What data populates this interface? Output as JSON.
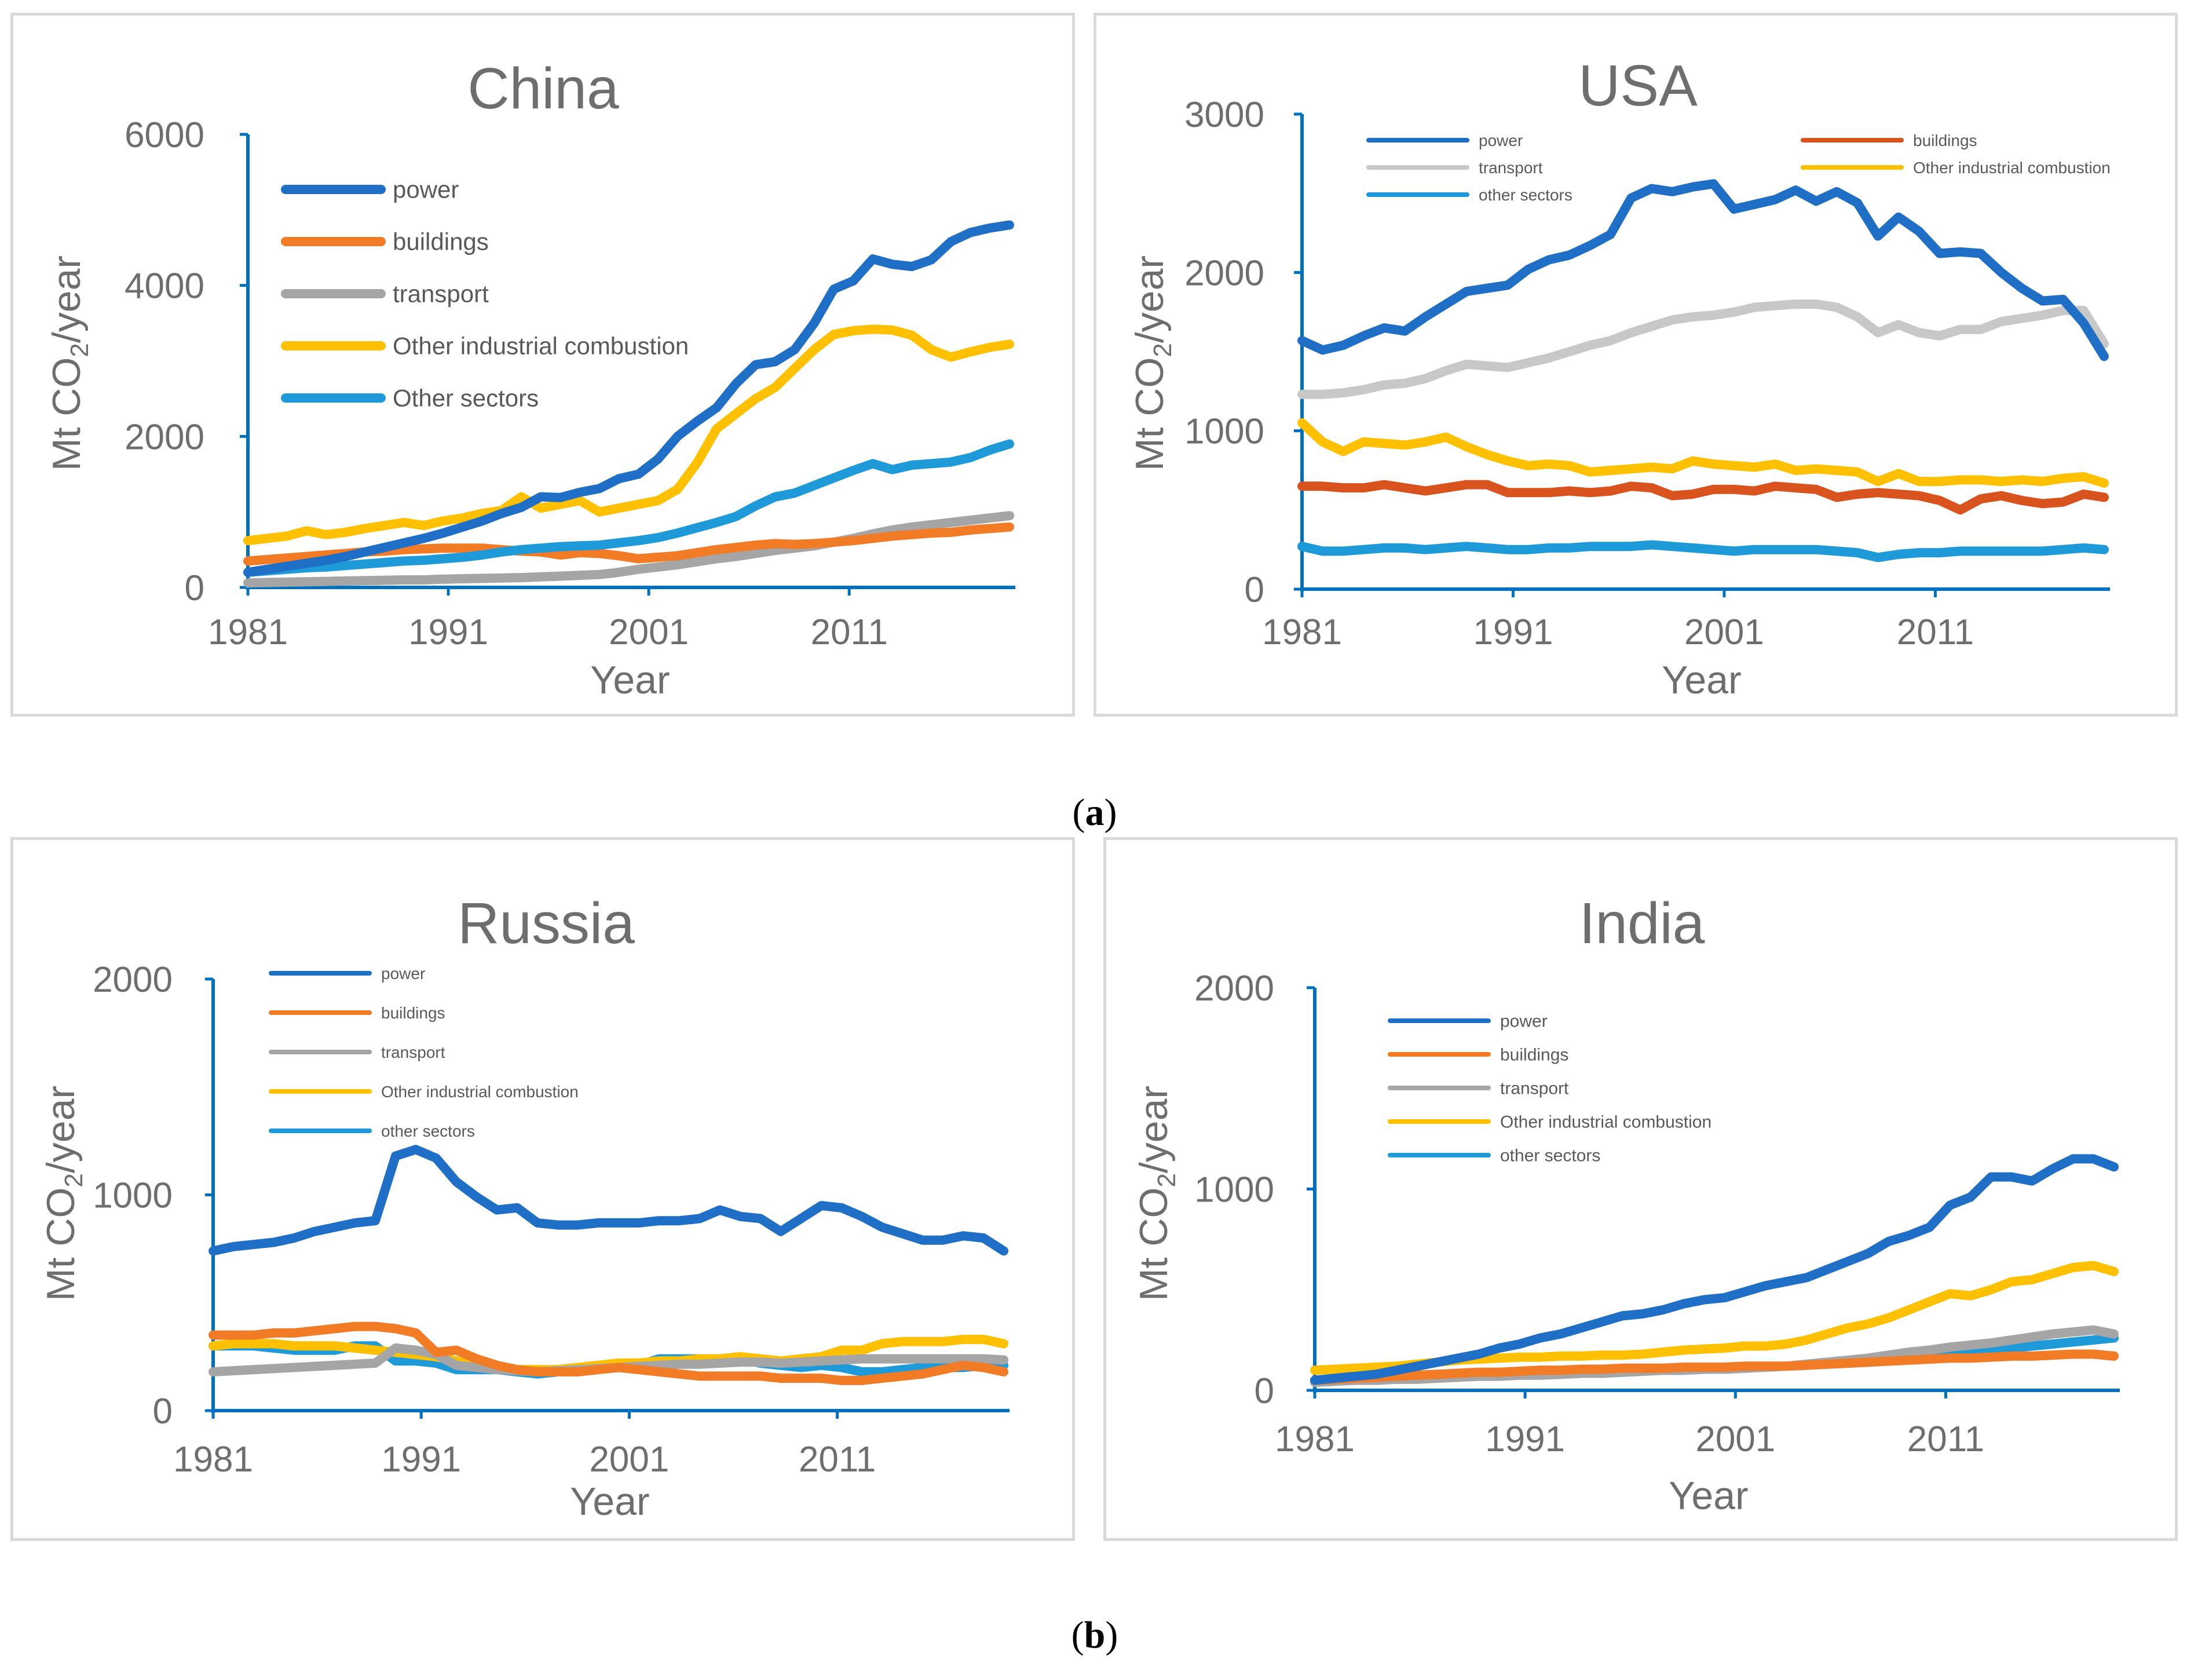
{
  "captions": {
    "a": "a",
    "b": "b"
  },
  "colors": {
    "power": "#1f6fc6",
    "buildings": "#f27b26",
    "transport": "#a5a5a5",
    "other_industrial": "#ffc000",
    "other_sectors": "#1f9ad9",
    "axis": "#0070c0",
    "tick_text": "#6e6e6e",
    "us_buildings": "#d9531e",
    "us_transport": "#c8c8c8"
  },
  "chart_data": [
    {
      "id": "china",
      "type": "line",
      "title": "China",
      "xlabel": "Year",
      "ylabel_main": "Mt CO",
      "ylabel_sub": "2",
      "ylabel_tail": "/year",
      "ylim": [
        0,
        6000
      ],
      "yticks": [
        "0",
        "2000",
        "4000",
        "6000"
      ],
      "xlim": [
        1981,
        2019
      ],
      "xticks": [
        "1981",
        "1991",
        "2001",
        "2011"
      ],
      "legend_style": "big",
      "series": [
        {
          "name": "power",
          "color": "#1f6fc6",
          "values": [
            200,
            240,
            280,
            320,
            360,
            410,
            470,
            530,
            590,
            650,
            720,
            800,
            880,
            980,
            1060,
            1200,
            1190,
            1260,
            1310,
            1440,
            1500,
            1700,
            2000,
            2200,
            2380,
            2700,
            2950,
            2990,
            3150,
            3500,
            3950,
            4060,
            4350,
            4280,
            4250,
            4340,
            4580,
            4700,
            4760,
            4800
          ]
        },
        {
          "name": "buildings",
          "color": "#f27b26",
          "values": [
            350,
            370,
            390,
            410,
            430,
            450,
            470,
            480,
            500,
            510,
            520,
            520,
            520,
            500,
            480,
            470,
            430,
            460,
            450,
            420,
            380,
            400,
            420,
            460,
            500,
            530,
            560,
            580,
            570,
            580,
            600,
            620,
            650,
            680,
            700,
            720,
            730,
            760,
            780,
            800
          ]
        },
        {
          "name": "transport",
          "color": "#a5a5a5",
          "values": [
            60,
            65,
            70,
            75,
            80,
            85,
            90,
            95,
            100,
            100,
            110,
            115,
            120,
            125,
            130,
            140,
            150,
            160,
            170,
            200,
            240,
            270,
            300,
            340,
            380,
            410,
            450,
            490,
            520,
            550,
            600,
            650,
            710,
            760,
            800,
            830,
            860,
            890,
            920,
            950
          ]
        },
        {
          "name": "Other industrial combustion",
          "color": "#ffc000",
          "values": [
            620,
            650,
            680,
            750,
            700,
            730,
            780,
            820,
            860,
            820,
            880,
            920,
            980,
            1020,
            1200,
            1050,
            1100,
            1150,
            1000,
            1050,
            1100,
            1150,
            1300,
            1650,
            2100,
            2300,
            2500,
            2650,
            2900,
            3150,
            3350,
            3400,
            3420,
            3410,
            3340,
            3150,
            3050,
            3120,
            3180,
            3220
          ]
        },
        {
          "name": "Other sectors",
          "color": "#1f9ad9",
          "values": [
            200,
            220,
            240,
            260,
            270,
            290,
            310,
            330,
            350,
            360,
            380,
            400,
            430,
            470,
            500,
            520,
            540,
            550,
            560,
            590,
            620,
            660,
            720,
            790,
            860,
            940,
            1080,
            1200,
            1250,
            1350,
            1450,
            1550,
            1640,
            1560,
            1620,
            1640,
            1660,
            1720,
            1820,
            1900
          ]
        }
      ]
    },
    {
      "id": "usa",
      "type": "line",
      "title": "USA",
      "xlabel": "Year",
      "ylabel_main": "Mt CO",
      "ylabel_sub": "2",
      "ylabel_tail": "/year",
      "ylim": [
        0,
        3000
      ],
      "yticks": [
        "0",
        "1000",
        "2000",
        "3000"
      ],
      "xlim": [
        1981,
        2019
      ],
      "xticks": [
        "1981",
        "1991",
        "2001",
        "2011"
      ],
      "legend_style": "two-col",
      "series": [
        {
          "name": "power",
          "color": "#1f6fc6",
          "values": [
            1570,
            1510,
            1540,
            1600,
            1650,
            1630,
            1720,
            1800,
            1880,
            1900,
            1920,
            2020,
            2080,
            2110,
            2170,
            2240,
            2470,
            2530,
            2510,
            2540,
            2560,
            2400,
            2430,
            2460,
            2520,
            2450,
            2510,
            2440,
            2230,
            2350,
            2260,
            2120,
            2130,
            2120,
            2000,
            1900,
            1820,
            1830,
            1680,
            1470
          ]
        },
        {
          "name": "buildings",
          "color": "#d9531e",
          "values": [
            650,
            650,
            640,
            640,
            660,
            640,
            620,
            640,
            660,
            660,
            610,
            610,
            610,
            620,
            610,
            620,
            650,
            640,
            590,
            600,
            630,
            630,
            620,
            650,
            640,
            630,
            580,
            600,
            610,
            600,
            590,
            560,
            500,
            570,
            590,
            560,
            540,
            550,
            600,
            580
          ]
        },
        {
          "name": "transport",
          "color": "#c8c8c8",
          "values": [
            1230,
            1230,
            1240,
            1260,
            1290,
            1300,
            1330,
            1380,
            1420,
            1410,
            1400,
            1430,
            1460,
            1500,
            1540,
            1570,
            1620,
            1660,
            1700,
            1720,
            1730,
            1750,
            1780,
            1790,
            1800,
            1800,
            1780,
            1720,
            1620,
            1670,
            1620,
            1600,
            1640,
            1640,
            1690,
            1710,
            1730,
            1760,
            1760,
            1550
          ]
        },
        {
          "name": "Other industrial combustion",
          "color": "#ffc000",
          "values": [
            1050,
            930,
            870,
            930,
            920,
            910,
            930,
            960,
            900,
            850,
            810,
            780,
            790,
            780,
            740,
            750,
            760,
            770,
            760,
            810,
            790,
            780,
            770,
            790,
            750,
            760,
            750,
            740,
            680,
            730,
            680,
            680,
            690,
            690,
            680,
            690,
            680,
            700,
            710,
            670
          ]
        },
        {
          "name": "other sectors",
          "color": "#1f9ad9",
          "values": [
            270,
            240,
            240,
            250,
            260,
            260,
            250,
            260,
            270,
            260,
            250,
            250,
            260,
            260,
            270,
            270,
            270,
            280,
            270,
            260,
            250,
            240,
            250,
            250,
            250,
            250,
            240,
            230,
            200,
            220,
            230,
            230,
            240,
            240,
            240,
            240,
            240,
            250,
            260,
            250
          ]
        }
      ]
    },
    {
      "id": "russia",
      "type": "line",
      "title": "Russia",
      "xlabel": "Year",
      "ylabel_main": "Mt CO",
      "ylabel_sub": "2",
      "ylabel_tail": "/year",
      "ylim": [
        0,
        2000
      ],
      "yticks": [
        "0",
        "1000",
        "2000"
      ],
      "xlim": [
        1981,
        2019
      ],
      "xticks": [
        "1981",
        "1991",
        "2001",
        "2011"
      ],
      "legend_style": "small",
      "series": [
        {
          "name": "power",
          "color": "#1f6fc6",
          "values": [
            740,
            760,
            770,
            780,
            800,
            830,
            850,
            870,
            880,
            1180,
            1210,
            1170,
            1060,
            990,
            930,
            940,
            870,
            860,
            860,
            870,
            870,
            870,
            880,
            880,
            890,
            930,
            900,
            890,
            830,
            890,
            950,
            940,
            900,
            850,
            820,
            790,
            790,
            810,
            800,
            740
          ]
        },
        {
          "name": "buildings",
          "color": "#f27b26",
          "values": [
            350,
            350,
            350,
            360,
            360,
            370,
            380,
            390,
            390,
            380,
            360,
            270,
            280,
            240,
            210,
            190,
            180,
            180,
            180,
            190,
            200,
            190,
            180,
            170,
            160,
            160,
            160,
            160,
            150,
            150,
            150,
            140,
            140,
            150,
            160,
            170,
            190,
            210,
            200,
            180
          ]
        },
        {
          "name": "transport",
          "color": "#a5a5a5",
          "values": [
            180,
            185,
            190,
            195,
            200,
            205,
            210,
            215,
            220,
            290,
            280,
            260,
            210,
            200,
            190,
            185,
            180,
            185,
            190,
            195,
            200,
            205,
            210,
            215,
            215,
            220,
            225,
            225,
            220,
            225,
            230,
            235,
            240,
            240,
            240,
            240,
            240,
            240,
            240,
            235
          ]
        },
        {
          "name": "Other industrial combustion",
          "color": "#ffc000",
          "values": [
            300,
            310,
            310,
            310,
            300,
            300,
            300,
            290,
            280,
            270,
            260,
            250,
            230,
            210,
            200,
            190,
            190,
            190,
            200,
            210,
            220,
            220,
            230,
            230,
            240,
            240,
            250,
            240,
            230,
            240,
            250,
            280,
            280,
            310,
            320,
            320,
            320,
            330,
            330,
            310
          ]
        },
        {
          "name": "other sectors",
          "color": "#1f9ad9",
          "values": [
            300,
            300,
            300,
            290,
            280,
            280,
            280,
            300,
            300,
            230,
            230,
            220,
            190,
            190,
            190,
            180,
            170,
            180,
            190,
            200,
            200,
            210,
            240,
            240,
            240,
            240,
            240,
            220,
            210,
            200,
            210,
            200,
            180,
            180,
            190,
            200,
            200,
            200,
            210,
            210
          ]
        }
      ]
    },
    {
      "id": "india",
      "type": "line",
      "title": "India",
      "xlabel": "Year",
      "ylabel_main": "Mt CO",
      "ylabel_sub": "2",
      "ylabel_tail": "/year",
      "ylim": [
        0,
        2000
      ],
      "yticks": [
        "0",
        "1000",
        "2000"
      ],
      "xlim": [
        1981,
        2019
      ],
      "xticks": [
        "1981",
        "1991",
        "2001",
        "2011"
      ],
      "legend_style": "medium",
      "series": [
        {
          "name": "power",
          "color": "#1f6fc6",
          "values": [
            50,
            60,
            70,
            80,
            100,
            120,
            140,
            160,
            180,
            210,
            230,
            260,
            280,
            310,
            340,
            370,
            380,
            400,
            430,
            450,
            460,
            490,
            520,
            540,
            560,
            600,
            640,
            680,
            740,
            770,
            810,
            920,
            960,
            1060,
            1060,
            1040,
            1100,
            1150,
            1150,
            1110
          ]
        },
        {
          "name": "buildings",
          "color": "#f27b26",
          "values": [
            50,
            55,
            60,
            65,
            70,
            75,
            80,
            85,
            90,
            90,
            95,
            100,
            100,
            105,
            105,
            110,
            110,
            110,
            115,
            115,
            115,
            120,
            120,
            120,
            125,
            130,
            135,
            140,
            145,
            150,
            155,
            160,
            160,
            165,
            170,
            170,
            175,
            180,
            180,
            170
          ]
        },
        {
          "name": "transport",
          "color": "#a5a5a5",
          "values": [
            40,
            45,
            50,
            50,
            55,
            55,
            60,
            65,
            70,
            70,
            75,
            75,
            80,
            85,
            85,
            90,
            95,
            100,
            100,
            105,
            105,
            110,
            115,
            120,
            130,
            140,
            150,
            160,
            175,
            190,
            200,
            215,
            225,
            235,
            250,
            265,
            280,
            290,
            300,
            280
          ]
        },
        {
          "name": "Other industrial combustion",
          "color": "#ffc000",
          "values": [
            100,
            105,
            110,
            115,
            120,
            130,
            140,
            150,
            155,
            160,
            165,
            165,
            170,
            170,
            175,
            175,
            180,
            190,
            200,
            205,
            210,
            220,
            220,
            230,
            250,
            280,
            310,
            330,
            360,
            400,
            440,
            480,
            470,
            500,
            540,
            550,
            580,
            610,
            620,
            590
          ]
        },
        {
          "name": "other sectors",
          "color": "#1f9ad9",
          "values": [
            50,
            55,
            60,
            60,
            65,
            65,
            70,
            70,
            75,
            75,
            80,
            80,
            80,
            85,
            85,
            90,
            95,
            100,
            100,
            105,
            105,
            110,
            115,
            120,
            125,
            130,
            135,
            140,
            150,
            155,
            160,
            180,
            195,
            205,
            210,
            220,
            230,
            240,
            250,
            260
          ]
        }
      ]
    }
  ]
}
